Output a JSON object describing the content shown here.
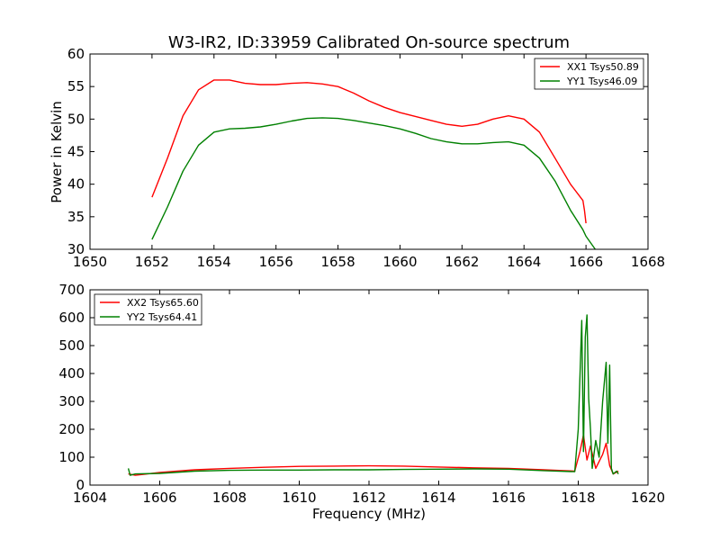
{
  "chart_data": [
    {
      "type": "line",
      "title": "W3-IR2, ID:33959 Calibrated On-source spectrum",
      "xlabel": "",
      "ylabel": "Power in Kelvin",
      "xlim": [
        1650,
        1668
      ],
      "ylim": [
        30,
        60
      ],
      "xticks": [
        "1650",
        "1652",
        "1654",
        "1656",
        "1658",
        "1660",
        "1662",
        "1664",
        "1666",
        "1668"
      ],
      "yticks": [
        "30",
        "35",
        "40",
        "45",
        "50",
        "55",
        "60"
      ],
      "legend": "top-right",
      "series": [
        {
          "name": "XX1 Tsys50.89",
          "color": "#ff0000",
          "x": [
            1652.0,
            1652.5,
            1653.0,
            1653.5,
            1654.0,
            1654.5,
            1655.0,
            1655.5,
            1656.0,
            1656.5,
            1657.0,
            1657.5,
            1658.0,
            1658.5,
            1659.0,
            1659.5,
            1660.0,
            1660.5,
            1661.0,
            1661.5,
            1662.0,
            1662.5,
            1663.0,
            1663.5,
            1664.0,
            1664.5,
            1665.0,
            1665.5,
            1665.9,
            1665.95,
            1666.0
          ],
          "values": [
            38.0,
            44.0,
            50.5,
            54.5,
            56.0,
            56.0,
            55.5,
            55.3,
            55.3,
            55.5,
            55.6,
            55.4,
            55.0,
            54.0,
            52.8,
            51.8,
            51.0,
            50.4,
            49.8,
            49.2,
            48.9,
            49.2,
            50.0,
            50.5,
            50.0,
            48.0,
            44.0,
            40.0,
            37.5,
            36.0,
            34.0
          ]
        },
        {
          "name": "YY1 Tsys46.09",
          "color": "#008000",
          "x": [
            1652.0,
            1652.5,
            1653.0,
            1653.5,
            1654.0,
            1654.5,
            1655.0,
            1655.5,
            1656.0,
            1656.5,
            1657.0,
            1657.5,
            1658.0,
            1658.5,
            1659.0,
            1659.5,
            1660.0,
            1660.5,
            1661.0,
            1661.5,
            1662.0,
            1662.5,
            1663.0,
            1663.5,
            1664.0,
            1664.5,
            1665.0,
            1665.5,
            1665.9,
            1666.0,
            1666.3
          ],
          "values": [
            31.5,
            36.5,
            42.0,
            46.0,
            48.0,
            48.5,
            48.6,
            48.8,
            49.2,
            49.7,
            50.1,
            50.2,
            50.1,
            49.8,
            49.4,
            49.0,
            48.5,
            47.8,
            47.0,
            46.5,
            46.2,
            46.2,
            46.4,
            46.5,
            46.0,
            44.0,
            40.5,
            36.0,
            33.0,
            32.0,
            30.0
          ]
        }
      ]
    },
    {
      "type": "line",
      "title": "",
      "xlabel": "Frequency (MHz)",
      "ylabel": "",
      "xlim": [
        1604,
        1620
      ],
      "ylim": [
        0,
        700
      ],
      "xticks": [
        "1604",
        "1606",
        "1608",
        "1610",
        "1612",
        "1614",
        "1616",
        "1618",
        "1620"
      ],
      "yticks": [
        "0",
        "100",
        "200",
        "300",
        "400",
        "500",
        "600",
        "700"
      ],
      "legend": "top-left",
      "series": [
        {
          "name": "XX2 Tsys65.60",
          "color": "#ff0000",
          "x": [
            1605.1,
            1605.3,
            1606.0,
            1607.0,
            1608.0,
            1609.0,
            1610.0,
            1611.0,
            1612.0,
            1613.0,
            1614.0,
            1615.0,
            1616.0,
            1617.0,
            1617.9,
            1618.05,
            1618.15,
            1618.25,
            1618.35,
            1618.5,
            1618.7,
            1618.8,
            1618.9,
            1619.0,
            1619.15
          ],
          "values": [
            40,
            35,
            45,
            55,
            60,
            64,
            67,
            68,
            69,
            68,
            65,
            62,
            60,
            55,
            50,
            120,
            180,
            90,
            140,
            60,
            110,
            150,
            70,
            40,
            50
          ]
        },
        {
          "name": "YY2 Tsys64.41",
          "color": "#008000",
          "x": [
            1605.1,
            1605.15,
            1605.3,
            1606.0,
            1607.0,
            1608.0,
            1609.0,
            1610.0,
            1611.0,
            1612.0,
            1613.0,
            1614.0,
            1615.0,
            1616.0,
            1617.0,
            1617.9,
            1618.0,
            1618.05,
            1618.1,
            1618.15,
            1618.2,
            1618.25,
            1618.3,
            1618.35,
            1618.4,
            1618.5,
            1618.6,
            1618.7,
            1618.8,
            1618.85,
            1618.9,
            1618.95,
            1619.0,
            1619.1,
            1619.15
          ],
          "values": [
            60,
            35,
            40,
            42,
            50,
            53,
            54,
            54,
            55,
            55,
            56,
            57,
            58,
            57,
            52,
            48,
            200,
            390,
            590,
            120,
            530,
            610,
            310,
            200,
            60,
            160,
            100,
            300,
            440,
            150,
            430,
            60,
            40,
            50,
            40
          ]
        }
      ]
    }
  ]
}
